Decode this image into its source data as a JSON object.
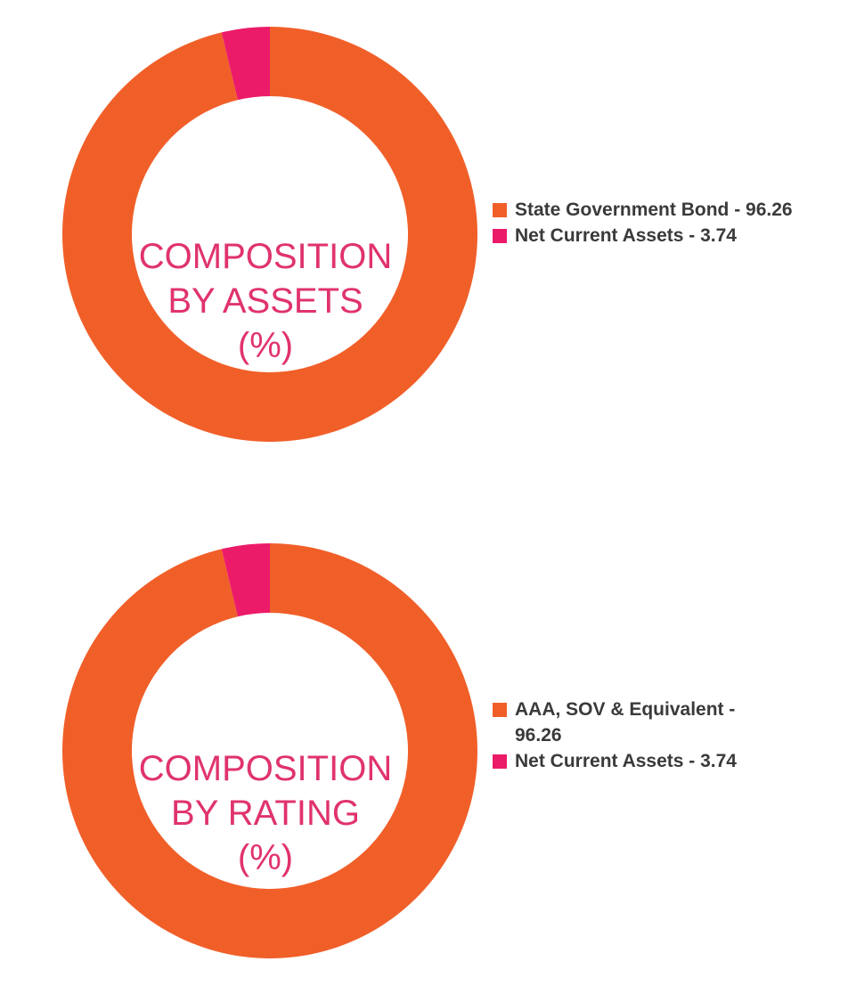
{
  "colors": {
    "primary": "#f15f29",
    "secondary": "#ec1b6a",
    "label": "#e0336d",
    "legend_text": "#3a3a3a"
  },
  "chart_data": [
    {
      "type": "pie",
      "variant": "donut",
      "center_label": [
        "COMPOSITION",
        "BY ASSETS",
        "(%)"
      ],
      "legend_position": "right",
      "slices": [
        {
          "name": "State Government Bond",
          "value": 96.26,
          "color": "#f15f29",
          "legend_label": "State Government Bond - 96.26"
        },
        {
          "name": "Net Current Assets",
          "value": 3.74,
          "color": "#ec1b6a",
          "legend_label": "Net Current Assets - 3.74"
        }
      ]
    },
    {
      "type": "pie",
      "variant": "donut",
      "center_label": [
        "COMPOSITION",
        "BY RATING",
        "(%)"
      ],
      "legend_position": "right",
      "slices": [
        {
          "name": "AAA, SOV & Equivalent",
          "value": 96.26,
          "color": "#f15f29",
          "legend_label": "AAA, SOV & Equivalent - 96.26"
        },
        {
          "name": "Net Current Assets",
          "value": 3.74,
          "color": "#ec1b6a",
          "legend_label": "Net Current Assets - 3.74"
        }
      ]
    }
  ]
}
